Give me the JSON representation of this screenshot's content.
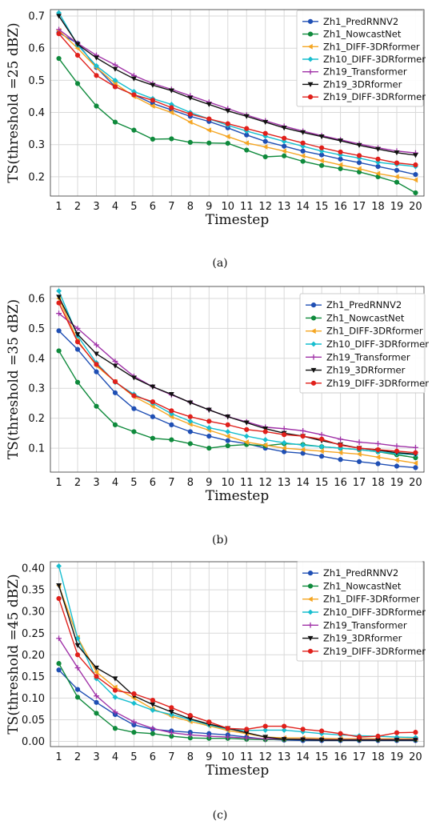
{
  "chart_data": [
    {
      "type": "line",
      "caption": "(a)",
      "xlabel": "Timestep",
      "ylabel": "TS(threshold =25 dBZ)",
      "x": [
        1,
        2,
        3,
        4,
        5,
        6,
        7,
        8,
        9,
        10,
        11,
        12,
        13,
        14,
        15,
        16,
        17,
        18,
        19,
        20
      ],
      "ylim": [
        0.14,
        0.72
      ],
      "yticks": [
        0.2,
        0.3,
        0.4,
        0.5,
        0.6,
        0.7
      ],
      "ytick_labels": [
        "0.2",
        "0.3",
        "0.4",
        "0.5",
        "0.6",
        "0.7"
      ],
      "grid": true,
      "legend": "top-right",
      "series": [
        {
          "name": "Zh1_PredRNNV2",
          "color": "#1f4fb4",
          "marker": "circle",
          "values": [
            0.648,
            0.615,
            0.54,
            0.48,
            0.455,
            0.428,
            0.408,
            0.388,
            0.372,
            0.352,
            0.33,
            0.31,
            0.295,
            0.28,
            0.268,
            0.255,
            0.244,
            0.232,
            0.22,
            0.207
          ]
        },
        {
          "name": "Zh1_NowcastNet",
          "color": "#0f8a3c",
          "marker": "circle",
          "values": [
            0.568,
            0.49,
            0.42,
            0.37,
            0.345,
            0.317,
            0.318,
            0.307,
            0.305,
            0.304,
            0.283,
            0.262,
            0.265,
            0.248,
            0.235,
            0.225,
            0.215,
            0.2,
            0.183,
            0.15
          ]
        },
        {
          "name": "Zh1_DIFF-3DRformer",
          "color": "#f5a623",
          "marker": "tri-left",
          "values": [
            0.655,
            0.6,
            0.54,
            0.49,
            0.45,
            0.42,
            0.4,
            0.37,
            0.345,
            0.325,
            0.305,
            0.293,
            0.28,
            0.265,
            0.25,
            0.237,
            0.225,
            0.21,
            0.2,
            0.19
          ]
        },
        {
          "name": "Zh10_DIFF-3DRformer",
          "color": "#17becf",
          "marker": "diamond",
          "values": [
            0.71,
            0.61,
            0.545,
            0.5,
            0.465,
            0.443,
            0.425,
            0.4,
            0.38,
            0.36,
            0.342,
            0.326,
            0.31,
            0.295,
            0.28,
            0.268,
            0.258,
            0.245,
            0.238,
            0.232
          ]
        },
        {
          "name": "Zh19_Transformer",
          "color": "#a032a8",
          "marker": "plus",
          "values": [
            0.658,
            0.615,
            0.578,
            0.548,
            0.515,
            0.49,
            0.472,
            0.452,
            0.432,
            0.412,
            0.392,
            0.374,
            0.357,
            0.342,
            0.328,
            0.315,
            0.302,
            0.29,
            0.28,
            0.274
          ]
        },
        {
          "name": "Zh19_3DRformer",
          "color": "#111111",
          "marker": "tri-down",
          "values": [
            0.7,
            0.612,
            0.57,
            0.535,
            0.505,
            0.485,
            0.468,
            0.445,
            0.425,
            0.405,
            0.388,
            0.37,
            0.352,
            0.338,
            0.325,
            0.312,
            0.298,
            0.286,
            0.275,
            0.267
          ]
        },
        {
          "name": "Zh19_DIFF-3DRformer",
          "color": "#e0201b",
          "marker": "circle",
          "values": [
            0.645,
            0.578,
            0.515,
            0.48,
            0.455,
            0.438,
            0.415,
            0.395,
            0.38,
            0.365,
            0.35,
            0.335,
            0.32,
            0.305,
            0.29,
            0.277,
            0.266,
            0.255,
            0.243,
            0.237
          ]
        }
      ]
    },
    {
      "type": "line",
      "caption": "(b)",
      "xlabel": "Timestep",
      "ylabel": "TS(threshold =35 dBZ)",
      "x": [
        1,
        2,
        3,
        4,
        5,
        6,
        7,
        8,
        9,
        10,
        11,
        12,
        13,
        14,
        15,
        16,
        17,
        18,
        19,
        20
      ],
      "ylim": [
        0.02,
        0.64
      ],
      "yticks": [
        0.1,
        0.2,
        0.3,
        0.4,
        0.5,
        0.6
      ],
      "ytick_labels": [
        "0.1",
        "0.2",
        "0.3",
        "0.4",
        "0.5",
        "0.6"
      ],
      "grid": true,
      "legend": "top-right",
      "series": [
        {
          "name": "Zh1_PredRNNV2",
          "color": "#1f4fb4",
          "marker": "circle",
          "values": [
            0.492,
            0.43,
            0.355,
            0.285,
            0.232,
            0.205,
            0.178,
            0.155,
            0.14,
            0.125,
            0.115,
            0.1,
            0.088,
            0.083,
            0.073,
            0.062,
            0.055,
            0.048,
            0.04,
            0.035
          ]
        },
        {
          "name": "Zh1_NowcastNet",
          "color": "#0f8a3c",
          "marker": "circle",
          "values": [
            0.425,
            0.32,
            0.24,
            0.178,
            0.155,
            0.133,
            0.128,
            0.115,
            0.1,
            0.108,
            0.112,
            0.108,
            0.115,
            0.112,
            0.105,
            0.1,
            0.095,
            0.088,
            0.078,
            0.068
          ]
        },
        {
          "name": "Zh1_DIFF-3DRformer",
          "color": "#f5a623",
          "marker": "tri-left",
          "values": [
            0.6,
            0.46,
            0.375,
            0.322,
            0.272,
            0.24,
            0.205,
            0.18,
            0.16,
            0.14,
            0.12,
            0.11,
            0.1,
            0.095,
            0.09,
            0.085,
            0.08,
            0.07,
            0.06,
            0.05
          ]
        },
        {
          "name": "Zh10_DIFF-3DRformer",
          "color": "#17becf",
          "marker": "diamond",
          "values": [
            0.625,
            0.475,
            0.385,
            0.32,
            0.28,
            0.25,
            0.215,
            0.19,
            0.168,
            0.155,
            0.14,
            0.128,
            0.118,
            0.11,
            0.105,
            0.1,
            0.095,
            0.088,
            0.082,
            0.078
          ]
        },
        {
          "name": "Zh19_Transformer",
          "color": "#a032a8",
          "marker": "plus",
          "values": [
            0.55,
            0.5,
            0.445,
            0.39,
            0.34,
            0.305,
            0.278,
            0.253,
            0.228,
            0.205,
            0.188,
            0.17,
            0.165,
            0.158,
            0.145,
            0.13,
            0.12,
            0.115,
            0.107,
            0.102
          ]
        },
        {
          "name": "Zh19_3DRformer",
          "color": "#111111",
          "marker": "tri-down",
          "values": [
            0.605,
            0.48,
            0.415,
            0.375,
            0.335,
            0.305,
            0.28,
            0.252,
            0.228,
            0.205,
            0.185,
            0.165,
            0.15,
            0.14,
            0.125,
            0.112,
            0.1,
            0.093,
            0.085,
            0.08
          ]
        },
        {
          "name": "Zh19_DIFF-3DRformer",
          "color": "#e0201b",
          "marker": "circle",
          "values": [
            0.585,
            0.455,
            0.38,
            0.322,
            0.275,
            0.255,
            0.225,
            0.205,
            0.19,
            0.178,
            0.162,
            0.155,
            0.145,
            0.14,
            0.13,
            0.11,
            0.1,
            0.095,
            0.09,
            0.085
          ]
        }
      ]
    },
    {
      "type": "line",
      "caption": "(c)",
      "xlabel": "Timestep",
      "ylabel": "TS(threshold =45 dBZ)",
      "x": [
        1,
        2,
        3,
        4,
        5,
        6,
        7,
        8,
        9,
        10,
        11,
        12,
        13,
        14,
        15,
        16,
        17,
        18,
        19,
        20
      ],
      "ylim": [
        -0.012,
        0.415
      ],
      "yticks": [
        0.0,
        0.05,
        0.1,
        0.15,
        0.2,
        0.25,
        0.3,
        0.35,
        0.4
      ],
      "ytick_labels": [
        "0.00",
        "0.05",
        "0.10",
        "0.15",
        "0.20",
        "0.25",
        "0.30",
        "0.35",
        "0.40"
      ],
      "grid": true,
      "legend": "top-right",
      "series": [
        {
          "name": "Zh1_PredRNNV2",
          "color": "#1f4fb4",
          "marker": "circle",
          "values": [
            0.165,
            0.12,
            0.09,
            0.062,
            0.038,
            0.028,
            0.024,
            0.021,
            0.018,
            0.015,
            0.01,
            0.005,
            0.003,
            0.002,
            0.002,
            0.002,
            0.002,
            0.002,
            0.002,
            0.002
          ]
        },
        {
          "name": "Zh1_NowcastNet",
          "color": "#0f8a3c",
          "marker": "circle",
          "values": [
            0.18,
            0.102,
            0.065,
            0.03,
            0.021,
            0.018,
            0.012,
            0.008,
            0.007,
            0.007,
            0.005,
            0.004,
            0.004,
            0.005,
            0.005,
            0.004,
            0.004,
            0.004,
            0.004,
            0.004
          ]
        },
        {
          "name": "Zh1_DIFF-3DRformer",
          "color": "#f5a623",
          "marker": "tri-left",
          "values": [
            0.36,
            0.24,
            0.16,
            0.125,
            0.1,
            0.075,
            0.058,
            0.046,
            0.036,
            0.025,
            0.018,
            0.01,
            0.008,
            0.008,
            0.007,
            0.006,
            0.006,
            0.006,
            0.006,
            0.006
          ]
        },
        {
          "name": "Zh10_DIFF-3DRformer",
          "color": "#17becf",
          "marker": "diamond",
          "values": [
            0.405,
            0.238,
            0.145,
            0.102,
            0.088,
            0.072,
            0.062,
            0.05,
            0.038,
            0.028,
            0.025,
            0.026,
            0.026,
            0.022,
            0.018,
            0.015,
            0.013,
            0.012,
            0.01,
            0.009
          ]
        },
        {
          "name": "Zh19_Transformer",
          "color": "#a032a8",
          "marker": "plus",
          "values": [
            0.238,
            0.17,
            0.105,
            0.068,
            0.045,
            0.03,
            0.02,
            0.015,
            0.012,
            0.01,
            0.008,
            0.006,
            0.005,
            0.005,
            0.004,
            0.004,
            0.004,
            0.004,
            0.004,
            0.004
          ]
        },
        {
          "name": "Zh19_3DRformer",
          "color": "#111111",
          "marker": "tri-down",
          "values": [
            0.36,
            0.222,
            0.17,
            0.145,
            0.105,
            0.085,
            0.068,
            0.052,
            0.04,
            0.03,
            0.02,
            0.01,
            0.005,
            0.004,
            0.003,
            0.003,
            0.003,
            0.003,
            0.003,
            0.003
          ]
        },
        {
          "name": "Zh19_DIFF-3DRformer",
          "color": "#e0201b",
          "marker": "circle",
          "values": [
            0.33,
            0.2,
            0.15,
            0.118,
            0.11,
            0.095,
            0.078,
            0.06,
            0.045,
            0.03,
            0.028,
            0.035,
            0.035,
            0.028,
            0.024,
            0.018,
            0.01,
            0.012,
            0.02,
            0.021
          ]
        }
      ]
    }
  ]
}
